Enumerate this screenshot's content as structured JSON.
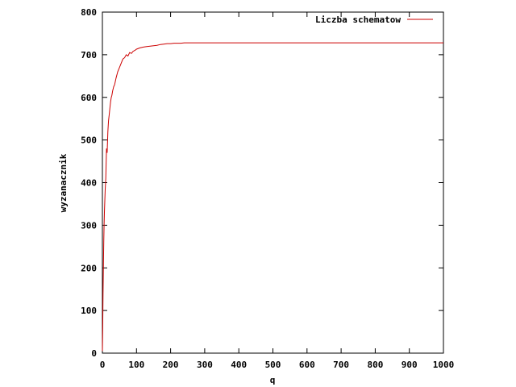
{
  "chart_data": {
    "type": "line",
    "title": "",
    "xlabel": "q",
    "ylabel": "wyzanacznik",
    "xlim": [
      0,
      1000
    ],
    "ylim": [
      0,
      800
    ],
    "xticks": [
      0,
      100,
      200,
      300,
      400,
      500,
      600,
      700,
      800,
      900,
      1000
    ],
    "yticks": [
      0,
      100,
      200,
      300,
      400,
      500,
      600,
      700,
      800
    ],
    "grid": false,
    "legend_position": "top-right",
    "series": [
      {
        "name": "Liczba schematow",
        "color": "#cc0000",
        "x": [
          0,
          1,
          2,
          3,
          4,
          5,
          6,
          8,
          10,
          12,
          14,
          16,
          18,
          20,
          22,
          24,
          26,
          28,
          30,
          33,
          36,
          40,
          45,
          50,
          55,
          60,
          65,
          70,
          75,
          80,
          85,
          90,
          95,
          100,
          110,
          120,
          130,
          140,
          150,
          160,
          170,
          180,
          190,
          200,
          210,
          220,
          230,
          240,
          260,
          300,
          400,
          500,
          600,
          700,
          800,
          900,
          1000
        ],
        "y": [
          5,
          60,
          140,
          210,
          260,
          300,
          330,
          380,
          410,
          480,
          470,
          520,
          545,
          560,
          575,
          590,
          600,
          605,
          615,
          625,
          630,
          645,
          660,
          670,
          680,
          690,
          693,
          700,
          697,
          705,
          703,
          708,
          710,
          713,
          716,
          718,
          719,
          720,
          721,
          722,
          724,
          725,
          726,
          726,
          727,
          727,
          727,
          728,
          728,
          728,
          728,
          728,
          728,
          728,
          728,
          728,
          728
        ]
      }
    ]
  }
}
